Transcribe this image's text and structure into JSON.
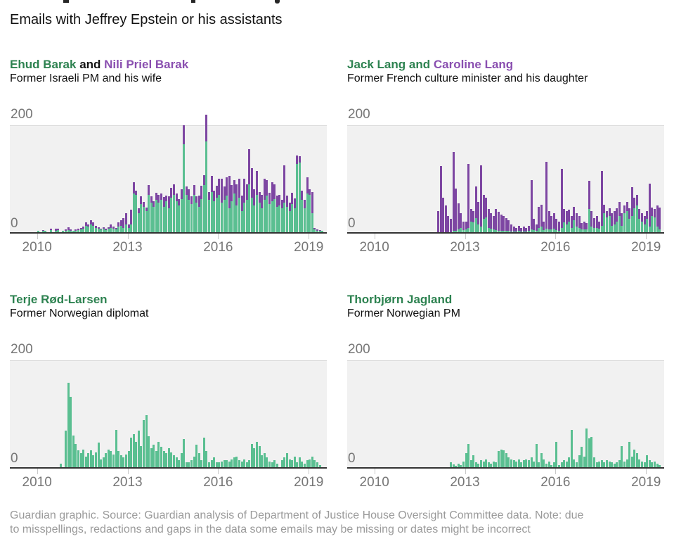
{
  "header": {
    "subtitle": "Emails with Jeffrey Epstein or his assistants"
  },
  "footer": {
    "lines": [
      "Guardian graphic. Source: Guardian analysis of Department of Justice House Oversight Committee data. Note: due",
      "to misspellings, redactions and gaps in the data some emails may be missing or dates might be incorrect"
    ]
  },
  "colors": {
    "bar_green": "#5abf91",
    "bar_purple": "#7d46a2",
    "title_green": "#2d8250",
    "title_purple": "#8a4fb0",
    "title_black": "#121212",
    "plot_bg": "#f1f1f1",
    "gridline": "#dcdcdc",
    "axis_line": "#333333",
    "axis_text": "#767676"
  },
  "chart_data": [
    {
      "type": "bar",
      "stacked": true,
      "title_parts": [
        {
          "text": "Ehud Barak",
          "color": "green"
        },
        {
          "text": " and ",
          "color": "black"
        },
        {
          "text": "Nili Priel Barak",
          "color": "purple"
        }
      ],
      "subtitle": "Former Israeli PM and his wife",
      "x_start": "2010-01",
      "x_interval": "month",
      "xlim": [
        2009.1,
        2019.6
      ],
      "ylim": [
        0,
        200
      ],
      "ytick_labels": [
        "200",
        "0"
      ],
      "xticks": [
        2010,
        2013,
        2016,
        2019
      ],
      "series": [
        {
          "name": "Ehud Barak",
          "color": "green",
          "values": [
            2,
            0,
            3,
            2,
            0,
            4,
            0,
            3,
            4,
            0,
            2,
            3,
            4,
            3,
            2,
            3,
            4,
            5,
            6,
            12,
            10,
            14,
            12,
            8,
            6,
            5,
            6,
            4,
            6,
            8,
            6,
            5,
            10,
            12,
            8,
            14,
            8,
            14,
            73,
            70,
            35,
            52,
            48,
            40,
            70,
            55,
            48,
            60,
            55,
            60,
            48,
            58,
            45,
            65,
            70,
            58,
            50,
            62,
            165,
            70,
            60,
            52,
            70,
            55,
            48,
            62,
            88,
            170,
            60,
            75,
            58,
            65,
            70,
            55,
            60,
            68,
            45,
            58,
            72,
            50,
            65,
            40,
            55,
            60,
            90,
            65,
            50,
            70,
            55,
            45,
            60,
            68,
            52,
            58,
            62,
            48,
            50,
            45,
            55,
            48,
            40,
            52,
            45,
            128,
            130,
            60,
            45,
            72,
            70,
            35,
            5,
            3,
            2,
            2
          ]
        },
        {
          "name": "Nili Priel Barak",
          "color": "purple",
          "values": [
            1,
            0,
            1,
            1,
            0,
            2,
            0,
            3,
            2,
            0,
            1,
            2,
            5,
            2,
            1,
            2,
            2,
            3,
            4,
            6,
            4,
            8,
            6,
            4,
            3,
            2,
            3,
            2,
            3,
            6,
            4,
            3,
            8,
            10,
            18,
            22,
            6,
            28,
            20,
            8,
            10,
            15,
            8,
            6,
            18,
            12,
            10,
            14,
            15,
            12,
            18,
            10,
            22,
            18,
            20,
            15,
            12,
            18,
            35,
            15,
            20,
            15,
            18,
            12,
            20,
            25,
            18,
            50,
            15,
            30,
            20,
            22,
            30,
            45,
            25,
            35,
            60,
            30,
            25,
            40,
            35,
            28,
            45,
            30,
            65,
            55,
            30,
            45,
            20,
            25,
            40,
            30,
            22,
            35,
            28,
            20,
            20,
            15,
            70,
            20,
            15,
            22,
            18,
            15,
            12,
            18,
            15,
            30,
            10,
            40,
            3,
            2,
            2,
            1
          ]
        }
      ]
    },
    {
      "type": "bar",
      "stacked": true,
      "title_parts": [
        {
          "text": "Jack Lang and",
          "color": "green"
        },
        {
          "text": " ",
          "color": "black"
        },
        {
          "text": "Caroline Lang",
          "color": "purple"
        }
      ],
      "subtitle": "Former French culture minister and his daughter",
      "x_start": "2010-01",
      "x_interval": "month",
      "xlim": [
        2009.1,
        2019.6
      ],
      "ylim": [
        0,
        200
      ],
      "ytick_labels": [
        "200",
        "0"
      ],
      "xticks": [
        2010,
        2013,
        2016,
        2019
      ],
      "series": [
        {
          "name": "Jack Lang",
          "color": "green",
          "values": [
            0,
            0,
            0,
            0,
            0,
            0,
            0,
            0,
            0,
            0,
            0,
            0,
            0,
            0,
            0,
            0,
            0,
            0,
            0,
            0,
            0,
            0,
            0,
            0,
            0,
            0,
            0,
            0,
            0,
            0,
            0,
            2,
            3,
            5,
            8,
            4,
            5,
            8,
            20,
            18,
            26,
            15,
            10,
            25,
            28,
            8,
            6,
            5,
            4,
            3,
            3,
            2,
            2,
            2,
            1,
            1,
            1,
            2,
            1,
            1,
            1,
            2,
            5,
            4,
            3,
            8,
            10,
            4,
            6,
            5,
            5,
            6,
            4,
            3,
            8,
            18,
            15,
            20,
            8,
            22,
            10,
            8,
            5,
            5,
            5,
            43,
            10,
            8,
            8,
            6,
            12,
            35,
            28,
            30,
            12,
            15,
            20,
            30,
            12,
            35,
            40,
            25,
            30,
            45,
            50,
            25,
            20,
            15,
            25,
            10,
            30,
            28,
            10,
            5
          ]
        },
        {
          "name": "Caroline Lang",
          "color": "purple",
          "values": [
            0,
            0,
            0,
            0,
            0,
            0,
            0,
            0,
            0,
            0,
            0,
            0,
            0,
            0,
            0,
            0,
            0,
            0,
            0,
            0,
            0,
            0,
            0,
            0,
            0,
            40,
            124,
            65,
            50,
            30,
            25,
            148,
            79,
            49,
            27,
            16,
            15,
            119,
            24,
            22,
            60,
            42,
            115,
            45,
            37,
            36,
            29,
            25,
            40,
            35,
            30,
            28,
            24,
            20,
            14,
            9,
            7,
            10,
            7,
            9,
            7,
            10,
            92,
            21,
            12,
            40,
            42,
            16,
            126,
            34,
            25,
            29,
            21,
            17,
            110,
            26,
            24,
            22,
            22,
            26,
            25,
            22,
            12,
            15,
            12,
            53,
            29,
            18,
            22,
            14,
            103,
            17,
            11,
            15,
            23,
            25,
            25,
            27,
            23,
            15,
            17,
            20,
            54,
            20,
            20,
            19,
            15,
            15,
            15,
            81,
            16,
            16,
            40,
            41
          ]
        }
      ]
    },
    {
      "type": "bar",
      "stacked": false,
      "title_parts": [
        {
          "text": "Terje Rød-Larsen",
          "color": "green"
        }
      ],
      "subtitle": "Former Norwegian diplomat",
      "x_start": "2010-01",
      "x_interval": "month",
      "xlim": [
        2009.1,
        2019.6
      ],
      "ylim": [
        0,
        200
      ],
      "ytick_labels": [
        "200",
        "0"
      ],
      "xticks": [
        2010,
        2013,
        2016,
        2019
      ],
      "series": [
        {
          "name": "Terje Rød-Larsen",
          "color": "green",
          "values": [
            0,
            0,
            0,
            0,
            0,
            0,
            0,
            0,
            0,
            7,
            0,
            68,
            158,
            132,
            59,
            44,
            31,
            26,
            33,
            20,
            26,
            31,
            22,
            28,
            46,
            15,
            18,
            26,
            33,
            30,
            24,
            70,
            30,
            22,
            18,
            24,
            30,
            55,
            62,
            48,
            68,
            40,
            88,
            97,
            58,
            35,
            42,
            30,
            48,
            38,
            30,
            26,
            35,
            28,
            22,
            18,
            13,
            26,
            52,
            9,
            9,
            13,
            20,
            42,
            26,
            13,
            55,
            30,
            9,
            13,
            18,
            9,
            9,
            11,
            13,
            13,
            11,
            15,
            18,
            20,
            13,
            11,
            15,
            9,
            13,
            44,
            35,
            48,
            40,
            22,
            26,
            18,
            11,
            9,
            13,
            7,
            0,
            13,
            18,
            26,
            15,
            13,
            20,
            9,
            18,
            11,
            7,
            13,
            15,
            20,
            13,
            9,
            4,
            0
          ]
        }
      ]
    },
    {
      "type": "bar",
      "stacked": false,
      "title_parts": [
        {
          "text": "Thorbjørn Jagland",
          "color": "green"
        }
      ],
      "subtitle": "Former Norwegian PM",
      "x_start": "2010-01",
      "x_interval": "month",
      "xlim": [
        2009.1,
        2019.6
      ],
      "ylim": [
        0,
        200
      ],
      "ytick_labels": [
        "200",
        "0"
      ],
      "xticks": [
        2010,
        2013,
        2016,
        2019
      ],
      "series": [
        {
          "name": "Thorbjørn Jagland",
          "color": "green",
          "values": [
            0,
            0,
            0,
            0,
            0,
            0,
            0,
            0,
            0,
            0,
            0,
            0,
            0,
            0,
            0,
            0,
            0,
            0,
            0,
            0,
            0,
            0,
            0,
            0,
            0,
            0,
            0,
            0,
            0,
            0,
            9,
            5,
            3,
            7,
            4,
            11,
            26,
            44,
            13,
            22,
            9,
            7,
            13,
            11,
            15,
            9,
            7,
            11,
            9,
            30,
            33,
            31,
            26,
            18,
            15,
            13,
            11,
            15,
            9,
            13,
            15,
            13,
            18,
            11,
            44,
            9,
            26,
            15,
            7,
            11,
            4,
            9,
            48,
            4,
            9,
            13,
            11,
            18,
            70,
            15,
            9,
            22,
            38,
            20,
            72,
            54,
            57,
            18,
            9,
            11,
            13,
            9,
            13,
            11,
            9,
            7,
            9,
            13,
            39,
            11,
            15,
            48,
            20,
            33,
            26,
            15,
            11,
            9,
            22,
            13,
            9,
            11,
            7,
            4
          ]
        }
      ]
    }
  ]
}
